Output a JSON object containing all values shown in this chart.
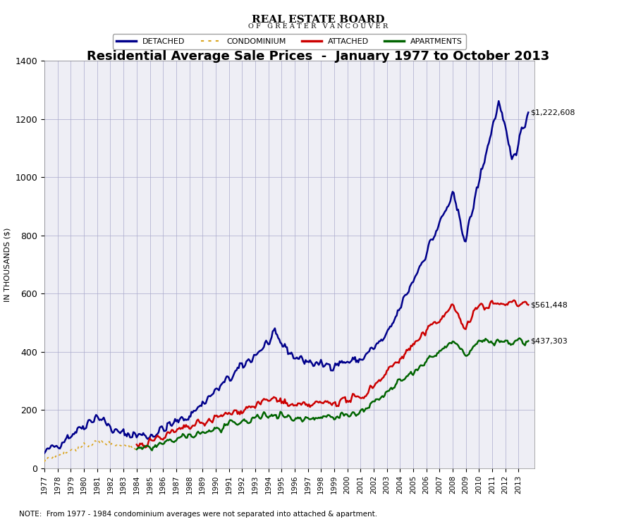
{
  "title": "Residential Average Sale Prices  -  January 1977 to October 2013",
  "ylabel": "IN THOUSANDS ($)",
  "ylim": [
    0,
    1400
  ],
  "yticks": [
    0,
    200,
    400,
    600,
    800,
    1000,
    1200,
    1400
  ],
  "note": "NOTE:  From 1977 - 1984 condominium averages were not separated into attached & apartment.",
  "final_values": {
    "detached": "$1,222,608",
    "attached": "$561,448",
    "apartments": "$437,303"
  },
  "colors": {
    "detached": "#00008B",
    "condominium": "#DAA520",
    "attached": "#CC0000",
    "apartments": "#006400",
    "background": "#FFFFFF",
    "grid": "#AAAACC"
  },
  "legend_labels": [
    "DETACHED",
    "CONDOMINIUM",
    "ATTACHED",
    "APARTMENTS"
  ]
}
